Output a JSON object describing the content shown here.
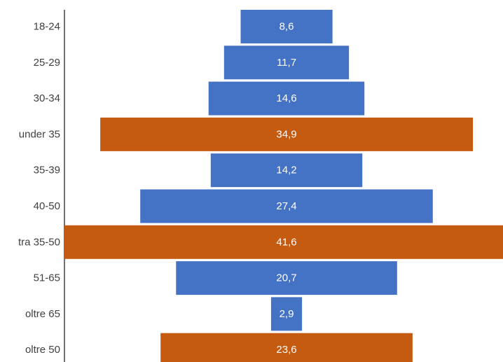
{
  "chart_data": {
    "type": "bar",
    "orientation": "horizontal",
    "layout": "centered-funnel",
    "categories": [
      "18-24",
      "25-29",
      "30-34",
      "under 35",
      "35-39",
      "40-50",
      "tra 35-50",
      "51-65",
      "oltre 65",
      "oltre 50"
    ],
    "values": [
      8.6,
      11.7,
      14.6,
      34.9,
      14.2,
      27.4,
      41.6,
      20.7,
      2.9,
      23.6
    ],
    "value_labels": [
      "8,6",
      "11,7",
      "14,6",
      "34,9",
      "14,2",
      "27,4",
      "41,6",
      "20,7",
      "2,9",
      "23,6"
    ],
    "kinds": [
      "age",
      "age",
      "age",
      "group",
      "age",
      "age",
      "group",
      "age",
      "age",
      "group"
    ],
    "colors": {
      "age": "#4472c4",
      "group": "#c55a11"
    },
    "title": "",
    "xlabel": "",
    "ylabel": "",
    "grid": false,
    "legend": "none"
  }
}
